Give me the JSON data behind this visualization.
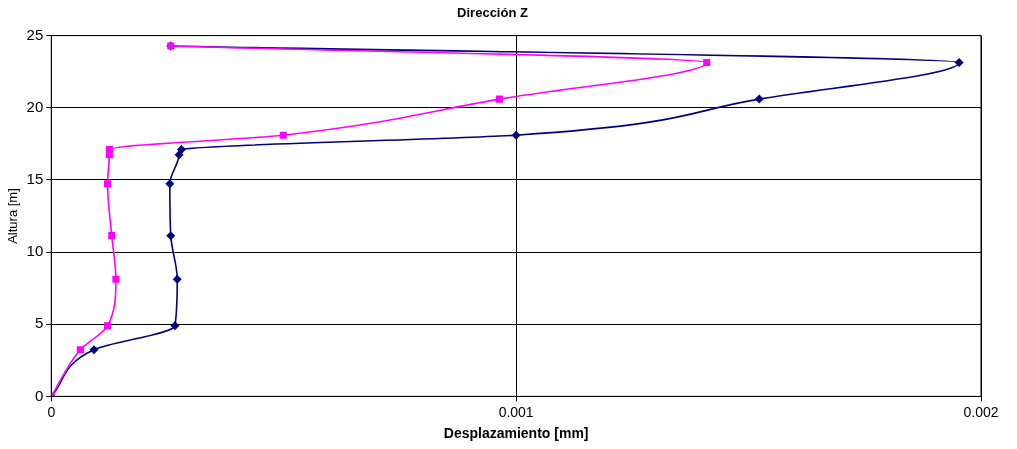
{
  "chart_data": {
    "type": "line",
    "title": "Dirección Z",
    "xlabel": "Desplazamiento [mm]",
    "ylabel": "Altura [m]",
    "xlim": [
      0,
      0.002
    ],
    "xticks": [
      0,
      0.001,
      0.002
    ],
    "ylim": [
      0,
      25
    ],
    "yticks": [
      0,
      5,
      10,
      15,
      20,
      25
    ],
    "grid": true,
    "series": [
      {
        "color": "#000080",
        "marker": "diamond",
        "x": [
          0,
          9.17e-05,
          0.000266,
          0.000271,
          0.000257,
          0.000255,
          0.000275,
          0.00028,
          0.001,
          0.001523,
          0.001953,
          0.000257
        ],
        "values": [
          0,
          3.23,
          4.89,
          8.12,
          11.14,
          14.73,
          16.74,
          17.1,
          18.1,
          20.6,
          23.13,
          24.28
        ]
      },
      {
        "color": "#ff00ff",
        "marker": "square",
        "x": [
          0,
          6.26e-05,
          0.000121,
          0.000139,
          0.00013,
          0.000121,
          0.000125,
          0.000125,
          0.000499,
          0.000964,
          0.00141,
          0.000257
        ],
        "values": [
          0,
          3.23,
          4.89,
          8.12,
          11.14,
          14.73,
          16.74,
          17.1,
          18.1,
          20.6,
          23.13,
          24.28
        ]
      }
    ]
  }
}
